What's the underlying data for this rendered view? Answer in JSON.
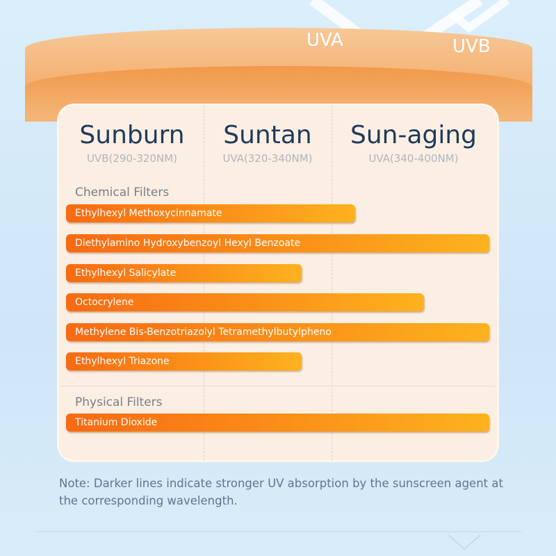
{
  "header": {
    "uva_label": "UVA",
    "uvb_label": "UVB"
  },
  "columns": [
    {
      "title": "Sunburn",
      "range": "UVB(290-320NM)"
    },
    {
      "title": "Suntan",
      "range": "UVA(320-340NM)"
    },
    {
      "title": "Sun-aging",
      "range": "UVA(340-400NM)"
    }
  ],
  "sections": [
    {
      "title": "Chemical Filters",
      "filters": [
        "Ethylhexyl Methoxycinnamate",
        "Diethylamino Hydroxybenzoyl Hexyl Benzoate",
        "Ethylhexyl Salicylate",
        "Octocrylene",
        "Methylene Bis-Benzotriazolyl Tetramethylbutylpheno",
        "Ethylhexyl Triazone"
      ]
    },
    {
      "title": "Physical Filters",
      "filters": [
        "Titanium Dioxide"
      ]
    }
  ],
  "note": "Note: Darker lines indicate stronger UV absorption by the sunscreen agent at the corresponding wavelength."
}
